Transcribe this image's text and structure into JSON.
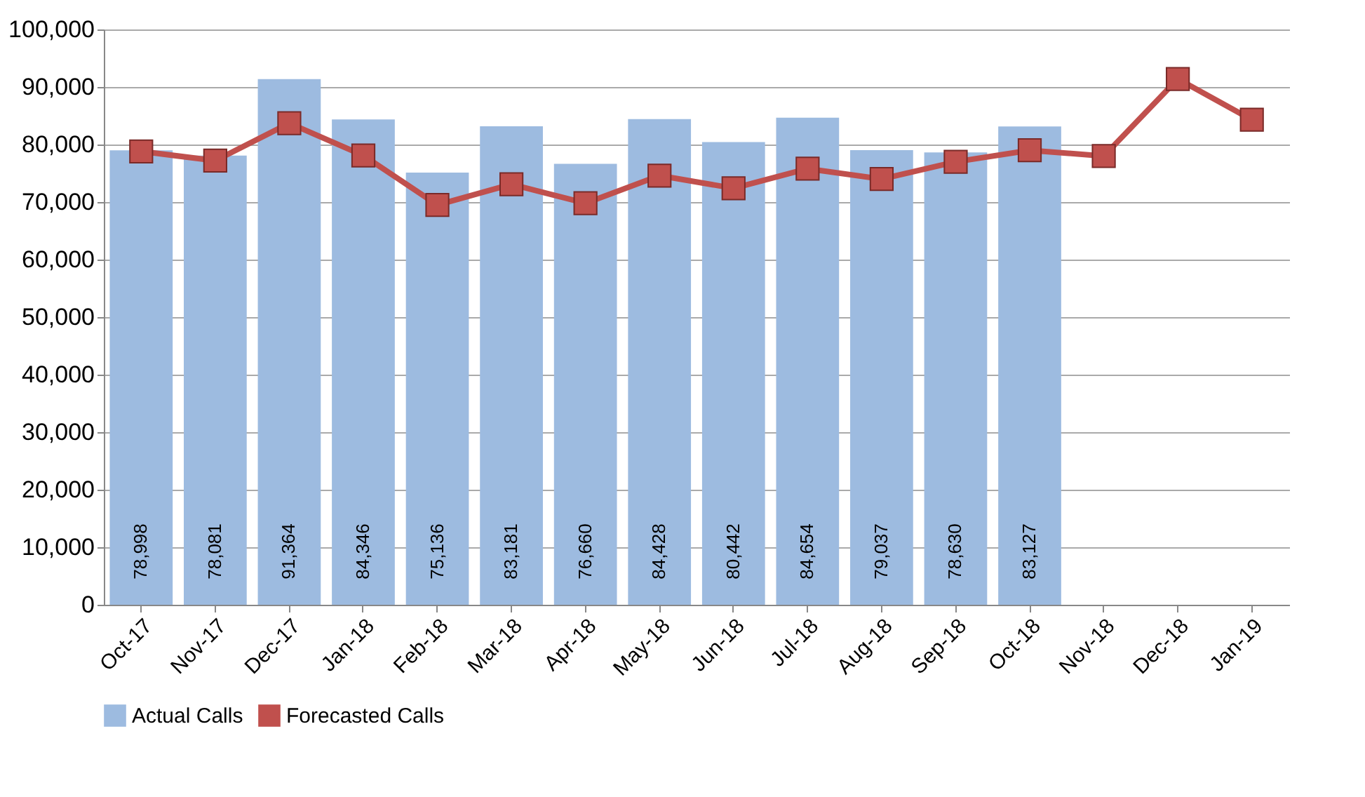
{
  "chart_data": {
    "type": "bar",
    "categories": [
      "Oct-17",
      "Nov-17",
      "Dec-17",
      "Jan-18",
      "Feb-18",
      "Mar-18",
      "Apr-18",
      "May-18",
      "Jun-18",
      "Jul-18",
      "Aug-18",
      "Sep-18",
      "Oct-18",
      "Nov-18",
      "Dec-18",
      "Jan-19"
    ],
    "series": [
      {
        "name": "Actual Calls",
        "color": "#9dbbe0",
        "values": [
          78998,
          78081,
          91364,
          84346,
          75136,
          83181,
          76660,
          84428,
          80442,
          84654,
          79037,
          78630,
          83127,
          null,
          null,
          null
        ],
        "value_labels": [
          "78,998",
          "78,081",
          "91,364",
          "84,346",
          "75,136",
          "83,181",
          "76,660",
          "84,428",
          "80,442",
          "84,654",
          "79,037",
          "78,630",
          "83,127",
          null,
          null,
          null
        ]
      },
      {
        "name": "Forecasted Calls",
        "type": "line",
        "color": "#c0504d",
        "marker": "square",
        "values": [
          78800,
          77200,
          83700,
          78100,
          69500,
          73100,
          69800,
          74600,
          72400,
          75800,
          74000,
          77000,
          79000,
          78000,
          91400,
          84300
        ]
      }
    ],
    "ylim": [
      0,
      100000
    ],
    "yticks": [
      0,
      {
        "value": 10000,
        "label": "10,000"
      },
      {
        "value": 20000,
        "label": "20,000"
      },
      {
        "value": 30000,
        "label": "30,000"
      },
      {
        "value": 40000,
        "label": "40,000"
      },
      {
        "value": 50000,
        "label": "50,000"
      },
      {
        "value": 60000,
        "label": "60,000"
      },
      {
        "value": 70000,
        "label": "70,000"
      },
      {
        "value": 80000,
        "label": "80,000"
      },
      {
        "value": 90000,
        "label": "90,000"
      },
      {
        "value": 100000,
        "label": "100,000"
      }
    ],
    "grid": "y",
    "legend": "bottom"
  }
}
